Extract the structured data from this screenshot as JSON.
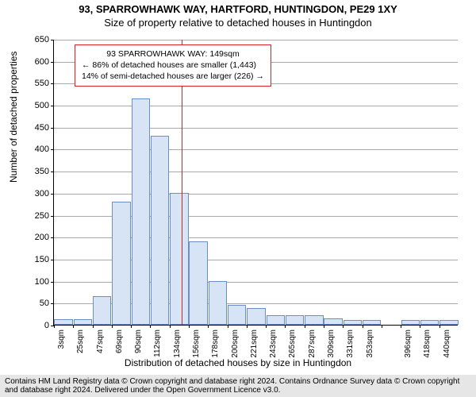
{
  "title_main": "93, SPARROWHAWK WAY, HARTFORD, HUNTINGDON, PE29 1XY",
  "title_sub": "Size of property relative to detached houses in Huntingdon",
  "ylabel": "Number of detached properties",
  "xlabel": "Distribution of detached houses by size in Huntingdon",
  "footer": "Contains HM Land Registry data © Crown copyright and database right 2024. Contains Ordnance Survey data © Crown copyright and database right 2024. Delivered under the Open Government Licence v3.0.",
  "annotation": {
    "line1": "93 SPARROWHAWK WAY: 149sqm",
    "line2": "← 86% of detached houses are smaller (1,443)",
    "line3": "14% of semi-detached houses are larger (226) →"
  },
  "chart": {
    "type": "histogram",
    "background_color": "#ffffff",
    "grid_color": "#aaaaaa",
    "bar_fill": "#d6e4f5",
    "bar_stroke": "#6a8fc7",
    "marker_line_color": "#d22",
    "marker_value": 149,
    "ylim": [
      0,
      650
    ],
    "ytick_step": 50,
    "bar_width_sqm": 22,
    "categories_start": 3,
    "categories": [
      "3sqm",
      "25sqm",
      "47sqm",
      "69sqm",
      "90sqm",
      "112sqm",
      "134sqm",
      "156sqm",
      "178sqm",
      "200sqm",
      "221sqm",
      "243sqm",
      "265sqm",
      "287sqm",
      "309sqm",
      "331sqm",
      "353sqm",
      "",
      "396sqm",
      "418sqm",
      "440sqm"
    ],
    "values": [
      12,
      12,
      65,
      280,
      515,
      430,
      300,
      190,
      100,
      45,
      38,
      22,
      22,
      22,
      15,
      10,
      10,
      0,
      10,
      10,
      10
    ],
    "title_fontsize": 13,
    "label_fontsize": 12,
    "tick_fontsize": 11
  }
}
